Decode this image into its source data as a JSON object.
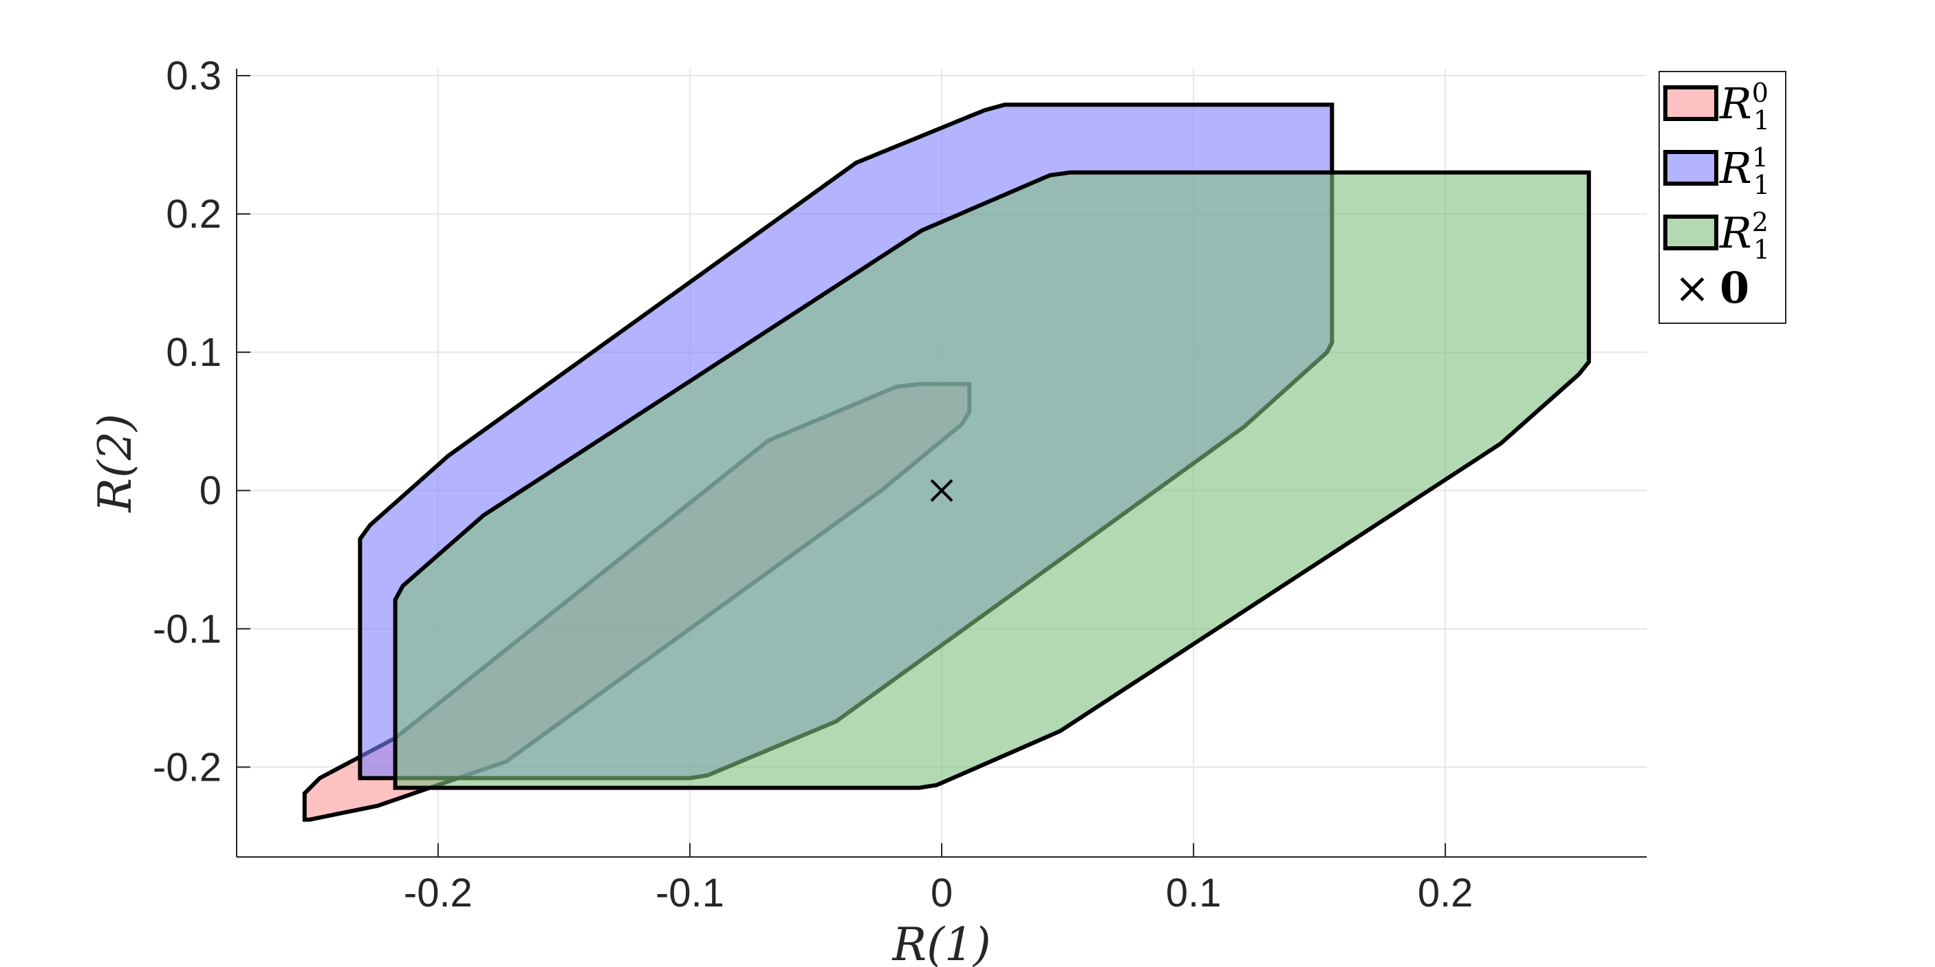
{
  "chart_data": {
    "type": "area",
    "xlabel": "R(1)",
    "ylabel": "R(2)",
    "xlim": [
      -0.28,
      0.28
    ],
    "ylim": [
      -0.265,
      0.305
    ],
    "xticks": [
      -0.2,
      -0.1,
      0,
      0.1,
      0.2
    ],
    "yticks": [
      -0.2,
      -0.1,
      0,
      0.1,
      0.2,
      0.3
    ],
    "xtick_labels": [
      "-0.2",
      "-0.1",
      "0",
      "0.1",
      "0.2"
    ],
    "ytick_labels": [
      "-0.2",
      "-0.1",
      "0",
      "0.1",
      "0.2",
      "0.3"
    ],
    "grid": true,
    "legend_position": "outside-top-right",
    "series": [
      {
        "name": "R_1^0",
        "legend_base": "R",
        "legend_sup": "0",
        "legend_sub": "1",
        "color": "#ff9999",
        "points": [
          [
            -0.253,
            -0.238
          ],
          [
            -0.253,
            -0.219
          ],
          [
            -0.247,
            -0.208
          ],
          [
            -0.217,
            -0.179
          ],
          [
            -0.069,
            0.036
          ],
          [
            -0.018,
            0.075
          ],
          [
            -0.009,
            0.077
          ],
          [
            0.011,
            0.077
          ],
          [
            0.011,
            0.057
          ],
          [
            0.008,
            0.048
          ],
          [
            -0.024,
            0.0
          ],
          [
            -0.173,
            -0.196
          ],
          [
            -0.224,
            -0.228
          ],
          [
            -0.251,
            -0.238
          ]
        ]
      },
      {
        "name": "R_1^1",
        "legend_base": "R",
        "legend_sup": "1",
        "legend_sub": "1",
        "color": "#8080ff",
        "points": [
          [
            -0.231,
            -0.208
          ],
          [
            -0.231,
            -0.035
          ],
          [
            -0.227,
            -0.025
          ],
          [
            -0.196,
            0.025
          ],
          [
            -0.034,
            0.237
          ],
          [
            0.017,
            0.275
          ],
          [
            0.025,
            0.279
          ],
          [
            0.155,
            0.279
          ],
          [
            0.155,
            0.107
          ],
          [
            0.153,
            0.1
          ],
          [
            0.12,
            0.046
          ],
          [
            -0.042,
            -0.167
          ],
          [
            -0.093,
            -0.206
          ],
          [
            -0.1,
            -0.208
          ]
        ]
      },
      {
        "name": "R_1^2",
        "legend_base": "R",
        "legend_sup": "2",
        "legend_sub": "1",
        "color": "#80c080",
        "points": [
          [
            -0.217,
            -0.215
          ],
          [
            -0.217,
            -0.079
          ],
          [
            -0.214,
            -0.069
          ],
          [
            -0.182,
            -0.018
          ],
          [
            -0.008,
            0.188
          ],
          [
            0.043,
            0.228
          ],
          [
            0.051,
            0.23
          ],
          [
            0.257,
            0.23
          ],
          [
            0.257,
            0.093
          ],
          [
            0.253,
            0.084
          ],
          [
            0.222,
            0.034
          ],
          [
            0.047,
            -0.174
          ],
          [
            -0.002,
            -0.213
          ],
          [
            -0.009,
            -0.215
          ]
        ]
      }
    ],
    "markers": [
      {
        "name": "0",
        "x": 0,
        "y": 0,
        "symbol": "×"
      }
    ]
  }
}
